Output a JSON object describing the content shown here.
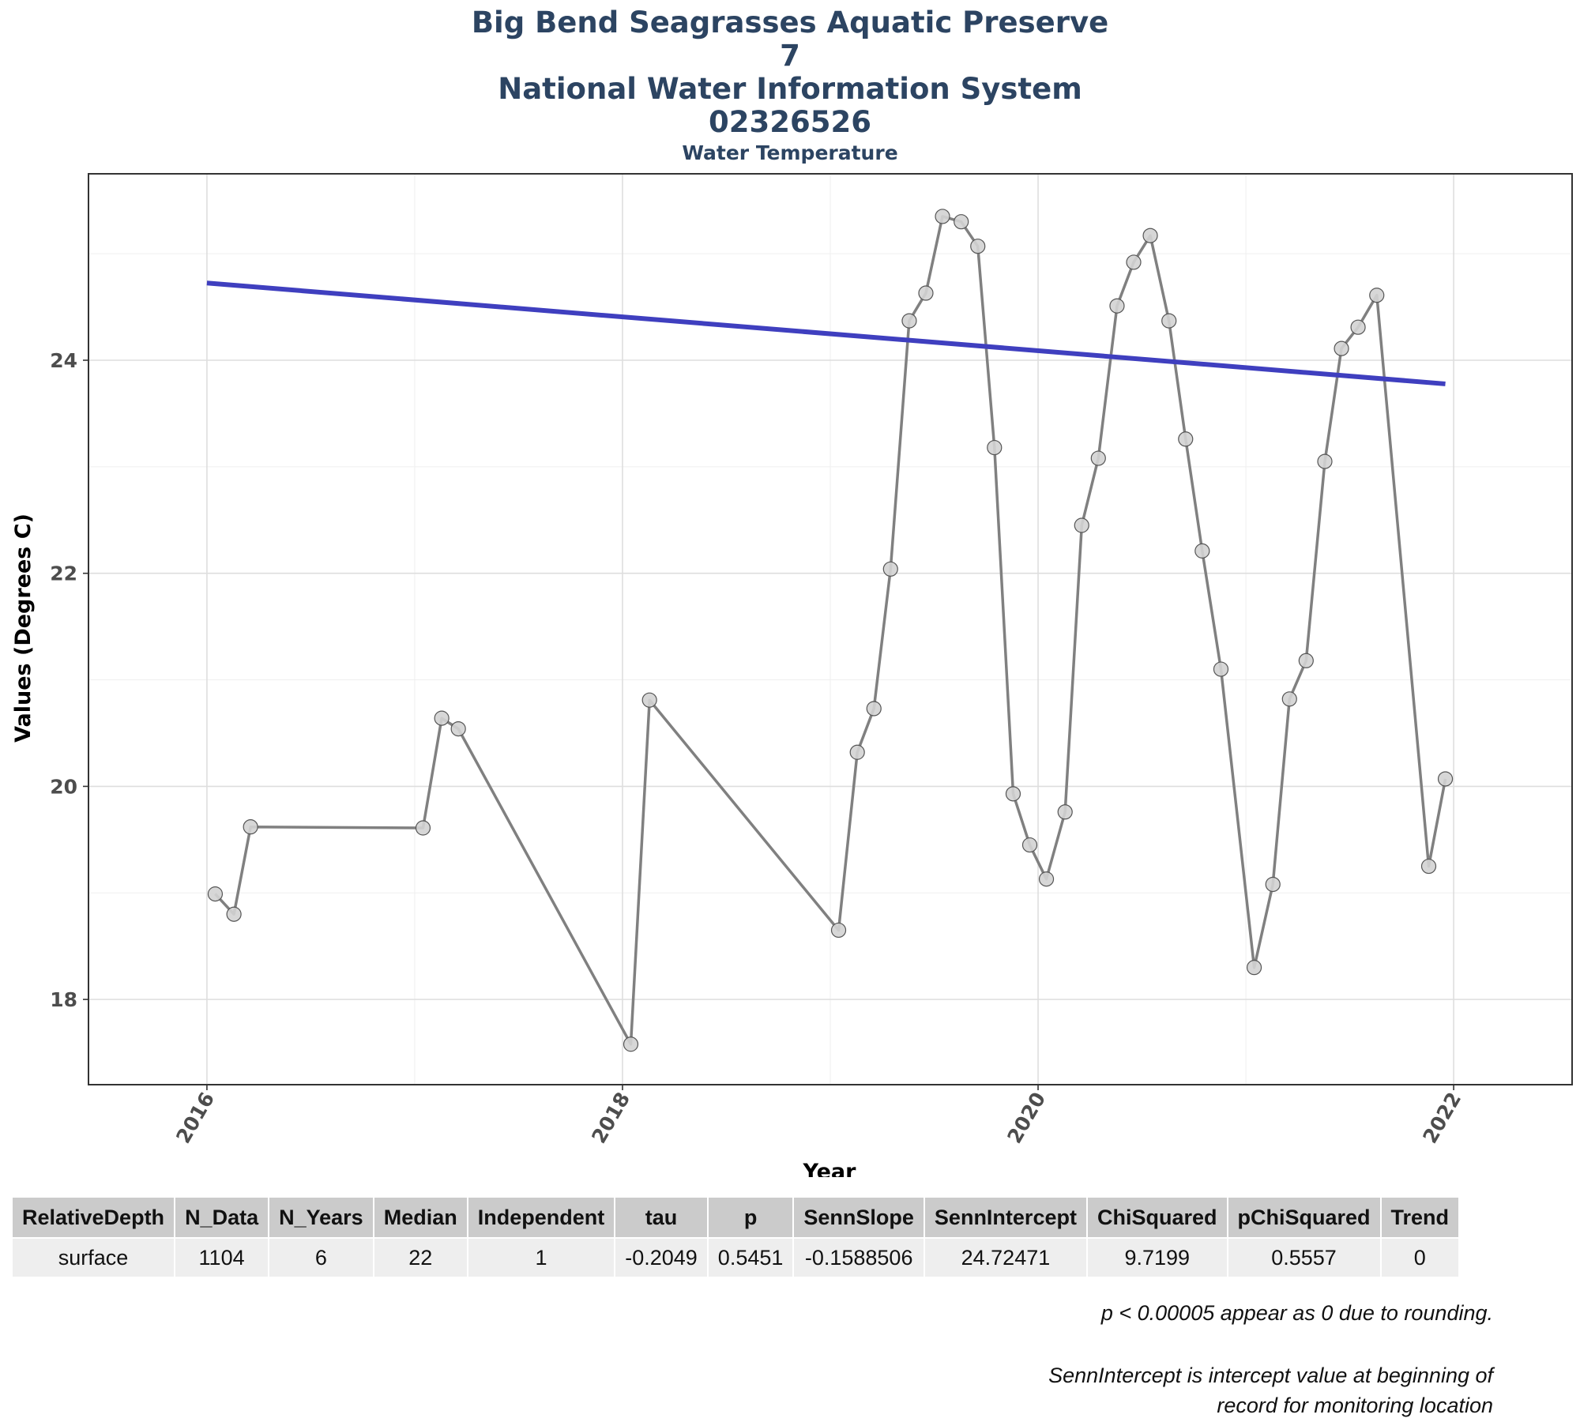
{
  "header": {
    "title_lines": [
      "Big Bend Seagrasses Aquatic Preserve",
      "7",
      "National Water Information System",
      "02326526"
    ],
    "subtitle": "Water Temperature"
  },
  "colors": {
    "title": "#2c4462",
    "series_line": "#808080",
    "trend_line": "#3f3fbf",
    "marker_fill": "#d3d3d3",
    "marker_stroke": "#555555"
  },
  "chart_data": {
    "type": "line",
    "title": "Big Bend Seagrasses Aquatic Preserve 7 National Water Information System 02326526",
    "subtitle": "Water Temperature",
    "xlabel": "Year",
    "ylabel": "Values (Degrees C)",
    "xlim": [
      2015.43,
      2022.57
    ],
    "ylim": [
      17.2,
      25.75
    ],
    "x_ticks": [
      2016,
      2018,
      2020,
      2022
    ],
    "y_ticks": [
      18,
      20,
      22,
      24
    ],
    "grid": true,
    "series": [
      {
        "points": [
          [
            2016.04,
            18.99
          ],
          [
            2016.13,
            18.8
          ],
          [
            2016.21,
            19.62
          ],
          [
            2017.04,
            19.61
          ],
          [
            2017.13,
            20.64
          ],
          [
            2017.21,
            20.54
          ],
          [
            2018.04,
            17.58
          ],
          [
            2018.13,
            20.81
          ],
          [
            2019.04,
            18.65
          ],
          [
            2019.13,
            20.32
          ],
          [
            2019.21,
            20.73
          ],
          [
            2019.29,
            22.04
          ],
          [
            2019.38,
            24.37
          ],
          [
            2019.46,
            24.63
          ],
          [
            2019.54,
            25.35
          ],
          [
            2019.63,
            25.3
          ],
          [
            2019.71,
            25.07
          ],
          [
            2019.79,
            23.18
          ],
          [
            2019.88,
            19.93
          ],
          [
            2019.96,
            19.45
          ],
          [
            2020.04,
            19.13
          ],
          [
            2020.13,
            19.76
          ],
          [
            2020.21,
            22.45
          ],
          [
            2020.29,
            23.08
          ],
          [
            2020.38,
            24.51
          ],
          [
            2020.46,
            24.92
          ],
          [
            2020.54,
            25.17
          ],
          [
            2020.63,
            24.37
          ],
          [
            2020.71,
            23.26
          ],
          [
            2020.79,
            22.21
          ],
          [
            2020.88,
            21.1
          ],
          [
            2021.04,
            18.3
          ],
          [
            2021.13,
            19.08
          ],
          [
            2021.21,
            20.82
          ],
          [
            2021.29,
            21.18
          ],
          [
            2021.38,
            23.05
          ],
          [
            2021.46,
            24.11
          ],
          [
            2021.54,
            24.31
          ],
          [
            2021.63,
            24.61
          ],
          [
            2021.88,
            19.25
          ],
          [
            2021.96,
            20.07
          ]
        ]
      }
    ],
    "trend": {
      "x_start": 2016.0,
      "x_end": 2021.96,
      "intercept": 24.72471,
      "slope": -0.1588506
    }
  },
  "stats_table": {
    "headers": [
      "RelativeDepth",
      "N_Data",
      "N_Years",
      "Median",
      "Independent",
      "tau",
      "p",
      "SennSlope",
      "SennIntercept",
      "ChiSquared",
      "pChiSquared",
      "Trend"
    ],
    "row": [
      "surface",
      "1104",
      "6",
      "22",
      "1",
      "-0.2049",
      "0.5451",
      "-0.1588506",
      "24.72471",
      "9.7199",
      "0.5557",
      "0"
    ]
  },
  "notes": {
    "rounding": "p < 0.00005 appear as 0 due to rounding.",
    "intercept_line1": "SennIntercept is intercept value at beginning of",
    "intercept_line2": "record for monitoring location"
  }
}
